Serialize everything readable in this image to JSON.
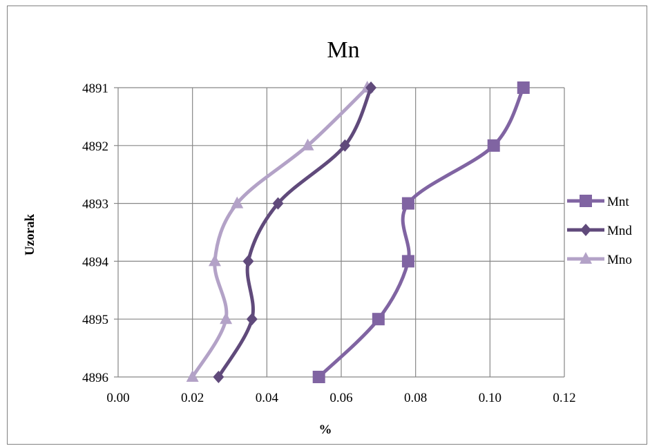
{
  "chart_data": {
    "type": "line",
    "title": "Mn",
    "xlabel": "%",
    "ylabel": "Uzorak",
    "xlim": [
      0.0,
      0.12
    ],
    "x_ticks": [
      "0.00",
      "0.02",
      "0.04",
      "0.06",
      "0.08",
      "0.10",
      "0.12"
    ],
    "categories": [
      "4891",
      "4892",
      "4893",
      "4894",
      "4895",
      "4896"
    ],
    "grid": true,
    "legend_position": "right",
    "series": [
      {
        "name": "Mnt",
        "marker": "square",
        "color": "#8064a2",
        "values": [
          0.109,
          0.101,
          0.078,
          0.078,
          0.07,
          0.054
        ]
      },
      {
        "name": "Mnd",
        "marker": "diamond",
        "color": "#604a7b",
        "values": [
          0.068,
          0.061,
          0.043,
          0.035,
          0.036,
          0.027
        ]
      },
      {
        "name": "Mno",
        "marker": "triangle",
        "color": "#b3a2c7",
        "values": [
          0.067,
          0.051,
          0.032,
          0.026,
          0.029,
          0.02
        ]
      }
    ]
  }
}
